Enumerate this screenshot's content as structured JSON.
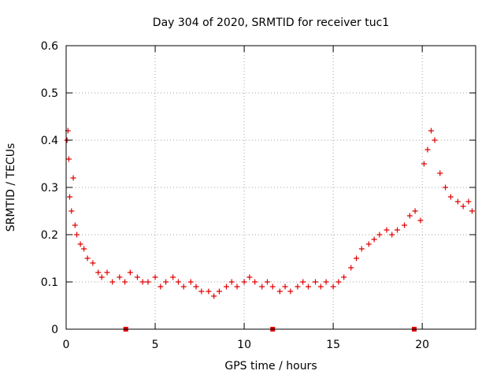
{
  "chart_data": {
    "type": "scatter",
    "title": "Day 304 of 2020, SRMTID for receiver tuc1",
    "xlabel": "GPS time / hours",
    "ylabel": "SRMTID / TECUs",
    "xlim": [
      0,
      23
    ],
    "ylim": [
      0,
      0.6
    ],
    "grid": true,
    "marker": "+",
    "x_ticks": [
      0,
      5,
      10,
      15,
      20
    ],
    "x_tick_labels": [
      "0",
      "5",
      "10",
      "15",
      "20"
    ],
    "y_ticks": [
      0,
      0.1,
      0.2,
      0.3,
      0.4,
      0.5,
      0.6
    ],
    "y_tick_labels": [
      "0",
      "0.1",
      "0.2",
      "0.3",
      "0.4",
      "0.5",
      "0.6"
    ],
    "series": [
      {
        "name": "SRMTID",
        "color": "#e00000",
        "x": [
          0.05,
          0.1,
          0.15,
          0.2,
          0.3,
          0.4,
          0.5,
          0.6,
          0.8,
          1.0,
          1.2,
          1.5,
          1.8,
          2.0,
          2.3,
          2.6,
          3.0,
          3.3,
          3.6,
          4.0,
          4.3,
          4.6,
          5.0,
          5.3,
          5.6,
          6.0,
          6.3,
          6.6,
          7.0,
          7.3,
          7.6,
          8.0,
          8.3,
          8.6,
          9.0,
          9.3,
          9.6,
          10.0,
          10.3,
          10.6,
          11.0,
          11.3,
          11.6,
          12.0,
          12.3,
          12.6,
          13.0,
          13.3,
          13.6,
          14.0,
          14.3,
          14.6,
          15.0,
          15.3,
          15.6,
          16.0,
          16.3,
          16.6,
          17.0,
          17.3,
          17.6,
          18.0,
          18.3,
          18.6,
          19.0,
          19.3,
          19.6,
          19.9,
          20.1,
          20.3,
          20.5,
          20.7,
          21.0,
          21.3,
          21.6,
          22.0,
          22.3,
          22.6,
          22.8
        ],
        "y": [
          0.4,
          0.42,
          0.36,
          0.28,
          0.25,
          0.32,
          0.22,
          0.2,
          0.18,
          0.17,
          0.15,
          0.14,
          0.12,
          0.11,
          0.12,
          0.1,
          0.11,
          0.1,
          0.12,
          0.11,
          0.1,
          0.1,
          0.11,
          0.09,
          0.1,
          0.11,
          0.1,
          0.09,
          0.1,
          0.09,
          0.08,
          0.08,
          0.07,
          0.08,
          0.09,
          0.1,
          0.09,
          0.1,
          0.11,
          0.1,
          0.09,
          0.1,
          0.09,
          0.08,
          0.09,
          0.08,
          0.09,
          0.1,
          0.09,
          0.1,
          0.09,
          0.1,
          0.09,
          0.1,
          0.11,
          0.13,
          0.15,
          0.17,
          0.18,
          0.19,
          0.2,
          0.21,
          0.2,
          0.21,
          0.22,
          0.24,
          0.25,
          0.23,
          0.35,
          0.38,
          0.42,
          0.4,
          0.33,
          0.3,
          0.28,
          0.27,
          0.26,
          0.27,
          0.25
        ]
      }
    ],
    "markers_on_axis": {
      "x": [
        3.35,
        11.6,
        19.55
      ],
      "y": 0
    }
  }
}
